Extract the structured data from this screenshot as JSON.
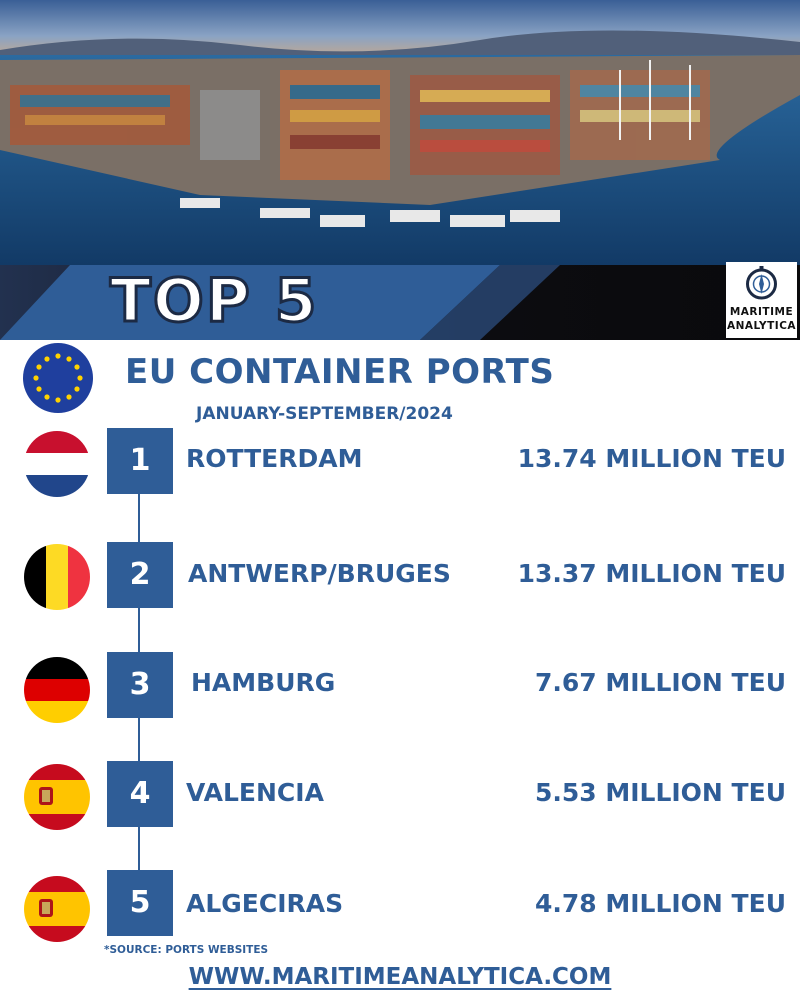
{
  "banner": {
    "headline": "TOP 5",
    "logo_line1": "MARITIME",
    "logo_line2": "ANALYTICA"
  },
  "title": "EU CONTAINER PORTS",
  "period": "JANUARY-SEPTEMBER/2024",
  "ports": [
    {
      "rank": "1",
      "name": "ROTTERDAM",
      "volume": "13.74 MILLION TEU",
      "country_flag": "netherlands-flag-icon"
    },
    {
      "rank": "2",
      "name": "ANTWERP/BRUGES",
      "volume": "13.37 MILLION TEU",
      "country_flag": "belgium-flag-icon"
    },
    {
      "rank": "3",
      "name": "HAMBURG",
      "volume": "7.67 MILLION TEU",
      "country_flag": "germany-flag-icon"
    },
    {
      "rank": "4",
      "name": "VALENCIA",
      "volume": "5.53 MILLION TEU",
      "country_flag": "spain-flag-icon"
    },
    {
      "rank": "5",
      "name": "ALGECIRAS",
      "volume": "4.78 MILLION TEU",
      "country_flag": "spain-flag-icon"
    }
  ],
  "source": "*SOURCE: PORTS WEBSITES",
  "website": "WWW.MARITIMEANALYTICA.COM",
  "colors": {
    "accent": "#2f5d97",
    "dark": "#1c2a44"
  }
}
